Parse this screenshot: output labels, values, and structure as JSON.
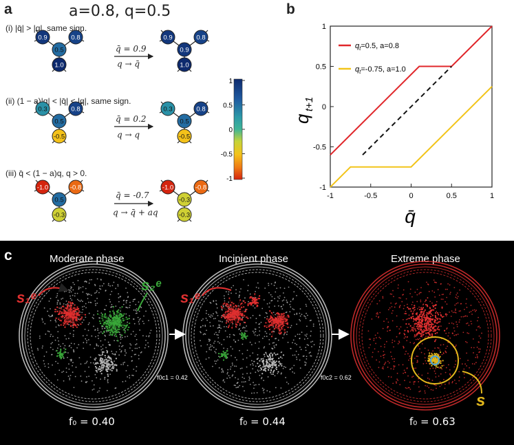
{
  "panel_a": {
    "letter": "a",
    "params": "a=0.8,  q=0.5",
    "cases": [
      {
        "label": "(i)  |q̄| > |q|, same sign.",
        "top": "q̄ = 0.9",
        "bottom": "q → q̄",
        "before": {
          "center": "0.5",
          "left": "0.9",
          "right": "0.8",
          "bottom": "1.0"
        },
        "after": {
          "center": "0.9",
          "left": "0.9",
          "right": "0.8",
          "bottom": "1.0"
        }
      },
      {
        "label": "(ii) (1 − a)|q| < |q̄| < |q|, same sign.",
        "top": "q̄ = 0.2",
        "bottom": "q → q",
        "before": {
          "center": "0.5",
          "left": "0.3",
          "right": "0.8",
          "bottom": "-0.5"
        },
        "after": {
          "center": "0.5",
          "left": "0.3",
          "right": "0.8",
          "bottom": "-0.5"
        }
      },
      {
        "label": "(iii) q̄ < (1 − a)q, q > 0.",
        "top": "q̄ = -0.7",
        "bottom": "q → q̄ + aq",
        "before": {
          "center": "0.5",
          "left": "-1.0",
          "right": "-0.8",
          "bottom": "-0.3"
        },
        "after": {
          "center": "-0.3",
          "left": "-1.0",
          "right": "-0.8",
          "bottom": "-0.3"
        }
      }
    ],
    "colorbar": {
      "ticks": [
        "1",
        "0.5",
        "0",
        "-0.5",
        "-1"
      ]
    }
  },
  "panel_b": {
    "letter": "b",
    "chart_data": {
      "type": "line",
      "xlabel": "q̄",
      "ylabel": "q_{t+1}",
      "xlim": [
        -1,
        1
      ],
      "ylim": [
        -1,
        1
      ],
      "xticks": [
        "-1",
        "-0.5",
        "0",
        "0.5",
        "1"
      ],
      "yticks": [
        "1",
        "0.5",
        "0",
        "-0.5",
        "-1"
      ],
      "series": [
        {
          "name": "q_t=0.5, a=0.8",
          "color": "#e0262a",
          "x": [
            -1,
            0.1,
            0.5,
            1
          ],
          "y": [
            -0.6,
            0.5,
            0.5,
            1
          ]
        },
        {
          "name": "q_t=-0.75, a=1.0",
          "color": "#f2c419",
          "x": [
            -1,
            -0.75,
            0,
            1
          ],
          "y": [
            -1,
            -0.75,
            -0.75,
            0.25
          ]
        },
        {
          "name": "identity",
          "color": "#111111",
          "dashed": true,
          "x": [
            -0.6,
            0.5
          ],
          "y": [
            -0.6,
            0.5
          ]
        }
      ],
      "legend": [
        {
          "q": "q",
          "sub": "t",
          "text": "=0.5, a=0.8",
          "color": "#e0262a"
        },
        {
          "q": "q",
          "sub": "t",
          "text": "=-0.75, a=1.0",
          "color": "#f2c419"
        }
      ],
      "legend_position": "top-left",
      "grid": false
    }
  },
  "panel_c": {
    "letter": "c",
    "phases": [
      {
        "title": "Moderate phase",
        "f0": "f₀ = 0.40"
      },
      {
        "title": "Incipient phase",
        "f0": "f₀ = 0.44"
      },
      {
        "title": "Extreme phase",
        "f0": "f₀ = 0.63"
      }
    ],
    "fc1": "f0c1 = 0.42",
    "fc2": "f0c2 = 0.62",
    "s1e": "s₁ᵉ",
    "s2e": "s₂ᵉ",
    "s": "s",
    "colors": {
      "red": "#e03030",
      "green": "#3aa83a",
      "grey": "#b8b8b8",
      "gold": "#e3b81c"
    }
  }
}
